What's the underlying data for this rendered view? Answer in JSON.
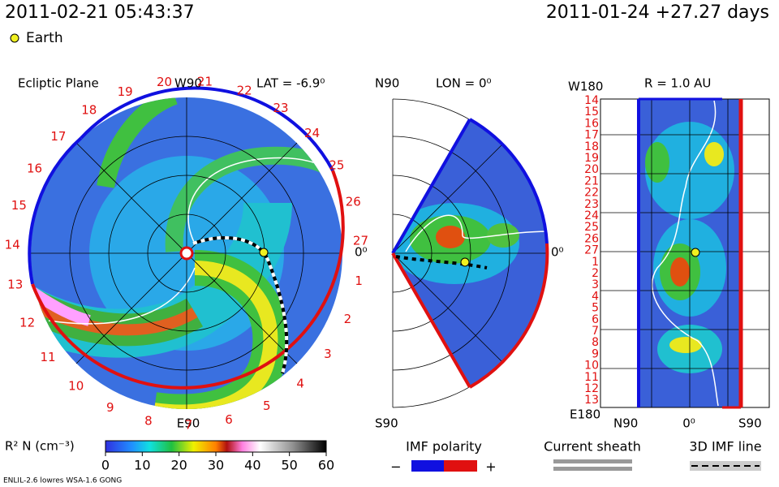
{
  "header": {
    "datetime": "2011-02-21 05:43:37",
    "run": "2011-01-24 +27.27 days",
    "earth_legend": "Earth"
  },
  "ecliptic": {
    "title": "Ecliptic Plane",
    "top": "W90",
    "lat": "LAT = -6.9⁰",
    "bottom": "E90",
    "right": "0⁰",
    "days": [
      "27",
      "1",
      "2",
      "3",
      "4",
      "5",
      "6",
      "7",
      "8",
      "9",
      "10",
      "11",
      "12",
      "13",
      "14",
      "15",
      "16",
      "17",
      "18",
      "19",
      "20",
      "21",
      "22",
      "23",
      "24",
      "25",
      "26"
    ]
  },
  "meridional": {
    "top": "N90",
    "lon": "LON = 0⁰",
    "bottom": "S90",
    "right": "0⁰"
  },
  "radial": {
    "top": "W180",
    "title": "R = 1.0 AU",
    "bottom": "E180",
    "x_left": "N90",
    "x_mid": "0⁰",
    "x_right": "S90",
    "days": [
      "14",
      "15",
      "16",
      "17",
      "18",
      "19",
      "20",
      "21",
      "22",
      "23",
      "24",
      "25",
      "26",
      "27",
      "1",
      "2",
      "3",
      "4",
      "5",
      "6",
      "7",
      "8",
      "9",
      "10",
      "11",
      "12",
      "13"
    ]
  },
  "colorbar": {
    "label": "R² N (cm⁻³)",
    "range": [
      0,
      60
    ],
    "ticks": [
      0,
      10,
      20,
      30,
      40,
      50,
      60
    ]
  },
  "legend": {
    "imf_polarity": "IMF polarity",
    "minus": "−",
    "plus": "+",
    "current_sheath": "Current sheath",
    "imf_line": "3D IMF line"
  },
  "footer": {
    "model": "ENLIL-2.6 lowres WSA-1.6 GONG"
  }
}
